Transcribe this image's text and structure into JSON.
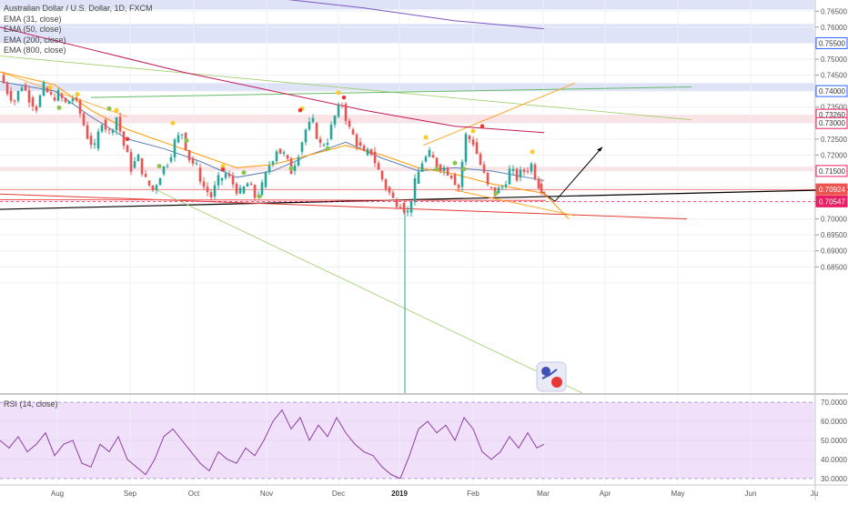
{
  "header": {
    "symbol_title": "Australian Dollar / U.S. Dollar, 1D, FXCM",
    "indicators": [
      "EMA (31, close)",
      "EMA (50, close)",
      "EMA (200, close)",
      "EMA (800, close)"
    ],
    "rsi_label": "RSI (14, close)"
  },
  "colors": {
    "up_candle": "#26a69a",
    "down_candle": "#ef5350",
    "ema31": "#5b7fb5",
    "ema50": "#ff9800",
    "ema200": "#c2185b",
    "ema800": "#7e57c2",
    "blue_zone": "#d6dcf5",
    "red_zone": "#f7dce0",
    "rsi_line": "#8e3fa0",
    "rsi_bg": "#f0e0fa",
    "current_price_tag": "#ef5350",
    "target_price_tag": "#e91e63"
  },
  "chart_data": {
    "type": "candlestick",
    "ylim": [
      0.6455,
      0.7685
    ],
    "price_axis_ticks": [
      "0.76500",
      "0.76000",
      "0.75000",
      "0.74500",
      "0.73500",
      "0.72500",
      "0.72000",
      "0.70500",
      "0.70000",
      "0.69500",
      "0.69000",
      "0.68500"
    ],
    "highlighted_levels": [
      {
        "label": "0.75500",
        "value": 0.755,
        "color": "#2962ff"
      },
      {
        "label": "0.74000",
        "value": 0.74,
        "color": "#2962ff"
      },
      {
        "label": "0.73260",
        "value": 0.7326,
        "color": "#e91e63"
      },
      {
        "label": "0.73000",
        "value": 0.73,
        "color": "#e91e63"
      },
      {
        "label": "0.71500",
        "value": 0.715,
        "color": "#e91e63"
      },
      {
        "label": "0.70924",
        "value": 0.70924,
        "color": "#ef5350"
      },
      {
        "label": "0.70547",
        "value": 0.70547,
        "color": "#e91e63"
      }
    ],
    "time_axis": [
      "Aug",
      "Sep",
      "Oct",
      "Nov",
      "Dec",
      "2019",
      "Feb",
      "Mar",
      "Apr",
      "May",
      "Jun",
      "Ju"
    ],
    "rsi_ticks": [
      "70.0000",
      "60.0000",
      "50.0000",
      "40.0000",
      "30.0000"
    ],
    "rsi_ylim": [
      28,
      72
    ],
    "rsi_bands": [
      30,
      70
    ],
    "close_path": [
      [
        0,
        0.745
      ],
      [
        8,
        0.74
      ],
      [
        16,
        0.737
      ],
      [
        24,
        0.742
      ],
      [
        32,
        0.738
      ],
      [
        40,
        0.735
      ],
      [
        48,
        0.741
      ],
      [
        56,
        0.738
      ],
      [
        64,
        0.739
      ],
      [
        72,
        0.736
      ],
      [
        80,
        0.738
      ],
      [
        88,
        0.733
      ],
      [
        96,
        0.726
      ],
      [
        104,
        0.722
      ],
      [
        112,
        0.731
      ],
      [
        120,
        0.727
      ],
      [
        128,
        0.732
      ],
      [
        136,
        0.723
      ],
      [
        144,
        0.716
      ],
      [
        152,
        0.719
      ],
      [
        160,
        0.712
      ],
      [
        168,
        0.709
      ],
      [
        176,
        0.714
      ],
      [
        184,
        0.718
      ],
      [
        192,
        0.724
      ],
      [
        200,
        0.727
      ],
      [
        208,
        0.719
      ],
      [
        216,
        0.716
      ],
      [
        224,
        0.71
      ],
      [
        232,
        0.707
      ],
      [
        240,
        0.712
      ],
      [
        248,
        0.714
      ],
      [
        256,
        0.711
      ],
      [
        264,
        0.708
      ],
      [
        272,
        0.711
      ],
      [
        280,
        0.707
      ],
      [
        288,
        0.71
      ],
      [
        296,
        0.717
      ],
      [
        304,
        0.722
      ],
      [
        312,
        0.72
      ],
      [
        320,
        0.715
      ],
      [
        328,
        0.721
      ],
      [
        336,
        0.728
      ],
      [
        344,
        0.73
      ],
      [
        352,
        0.723
      ],
      [
        360,
        0.725
      ],
      [
        368,
        0.732
      ],
      [
        376,
        0.736
      ],
      [
        384,
        0.728
      ],
      [
        392,
        0.724
      ],
      [
        400,
        0.72
      ],
      [
        408,
        0.721
      ],
      [
        416,
        0.715
      ],
      [
        424,
        0.71
      ],
      [
        432,
        0.706
      ],
      [
        440,
        0.705
      ],
      [
        448,
        0.702
      ],
      [
        456,
        0.711
      ],
      [
        464,
        0.718
      ],
      [
        472,
        0.72
      ],
      [
        480,
        0.717
      ],
      [
        488,
        0.716
      ],
      [
        496,
        0.714
      ],
      [
        504,
        0.71
      ],
      [
        512,
        0.726
      ],
      [
        520,
        0.724
      ],
      [
        528,
        0.717
      ],
      [
        536,
        0.71
      ],
      [
        544,
        0.708
      ],
      [
        552,
        0.71
      ],
      [
        560,
        0.715
      ],
      [
        568,
        0.713
      ],
      [
        576,
        0.715
      ],
      [
        584,
        0.717
      ],
      [
        592,
        0.711
      ],
      [
        598,
        0.7092
      ]
    ],
    "ema31": [
      [
        0,
        0.743
      ],
      [
        60,
        0.74
      ],
      [
        100,
        0.732
      ],
      [
        140,
        0.725
      ],
      [
        180,
        0.722
      ],
      [
        220,
        0.718
      ],
      [
        260,
        0.713
      ],
      [
        300,
        0.715
      ],
      [
        340,
        0.72
      ],
      [
        380,
        0.724
      ],
      [
        420,
        0.719
      ],
      [
        460,
        0.715
      ],
      [
        500,
        0.716
      ],
      [
        540,
        0.715
      ],
      [
        598,
        0.712
      ]
    ],
    "ema50": [
      [
        0,
        0.746
      ],
      [
        60,
        0.742
      ],
      [
        100,
        0.734
      ],
      [
        140,
        0.728
      ],
      [
        180,
        0.724
      ],
      [
        220,
        0.72
      ],
      [
        260,
        0.716
      ],
      [
        300,
        0.717
      ],
      [
        340,
        0.72
      ],
      [
        380,
        0.723
      ],
      [
        420,
        0.72
      ],
      [
        460,
        0.716
      ],
      [
        500,
        0.714
      ],
      [
        540,
        0.711
      ],
      [
        598,
        0.708
      ],
      [
        625,
        0.7
      ]
    ],
    "ema200": [
      [
        0,
        0.76
      ],
      [
        100,
        0.753
      ],
      [
        200,
        0.746
      ],
      [
        300,
        0.74
      ],
      [
        400,
        0.734
      ],
      [
        500,
        0.729
      ],
      [
        598,
        0.727
      ]
    ],
    "ema800": [
      [
        305,
        0.769
      ],
      [
        400,
        0.766
      ],
      [
        500,
        0.762
      ],
      [
        598,
        0.7595
      ]
    ],
    "rsi_values": [
      [
        0,
        50
      ],
      [
        10,
        46
      ],
      [
        20,
        52
      ],
      [
        30,
        44
      ],
      [
        40,
        48
      ],
      [
        50,
        54
      ],
      [
        60,
        42
      ],
      [
        70,
        48
      ],
      [
        80,
        50
      ],
      [
        90,
        38
      ],
      [
        100,
        36
      ],
      [
        110,
        48
      ],
      [
        120,
        44
      ],
      [
        130,
        52
      ],
      [
        140,
        40
      ],
      [
        150,
        36
      ],
      [
        160,
        32
      ],
      [
        170,
        40
      ],
      [
        180,
        52
      ],
      [
        190,
        56
      ],
      [
        200,
        50
      ],
      [
        210,
        44
      ],
      [
        220,
        38
      ],
      [
        230,
        34
      ],
      [
        240,
        44
      ],
      [
        250,
        40
      ],
      [
        260,
        38
      ],
      [
        270,
        46
      ],
      [
        280,
        42
      ],
      [
        290,
        50
      ],
      [
        300,
        60
      ],
      [
        310,
        66
      ],
      [
        320,
        56
      ],
      [
        330,
        62
      ],
      [
        340,
        50
      ],
      [
        350,
        58
      ],
      [
        360,
        52
      ],
      [
        370,
        62
      ],
      [
        380,
        54
      ],
      [
        390,
        48
      ],
      [
        400,
        44
      ],
      [
        410,
        42
      ],
      [
        420,
        36
      ],
      [
        430,
        32
      ],
      [
        440,
        30
      ],
      [
        450,
        42
      ],
      [
        460,
        56
      ],
      [
        470,
        60
      ],
      [
        480,
        54
      ],
      [
        490,
        58
      ],
      [
        500,
        50
      ],
      [
        510,
        62
      ],
      [
        520,
        56
      ],
      [
        530,
        44
      ],
      [
        540,
        40
      ],
      [
        550,
        44
      ],
      [
        560,
        52
      ],
      [
        570,
        46
      ],
      [
        580,
        54
      ],
      [
        590,
        46
      ],
      [
        598,
        48
      ]
    ]
  }
}
